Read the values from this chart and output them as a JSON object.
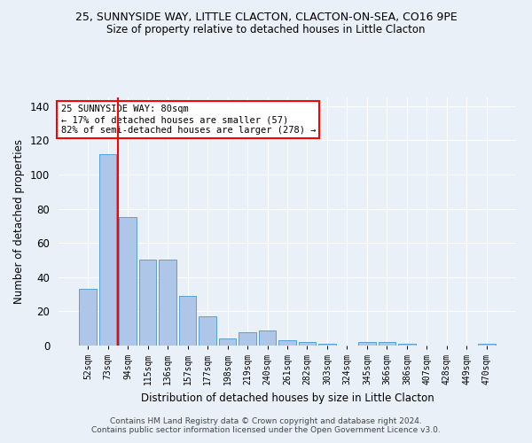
{
  "title1": "25, SUNNYSIDE WAY, LITTLE CLACTON, CLACTON-ON-SEA, CO16 9PE",
  "title2": "Size of property relative to detached houses in Little Clacton",
  "xlabel": "Distribution of detached houses by size in Little Clacton",
  "ylabel": "Number of detached properties",
  "categories": [
    "52sqm",
    "73sqm",
    "94sqm",
    "115sqm",
    "136sqm",
    "157sqm",
    "177sqm",
    "198sqm",
    "219sqm",
    "240sqm",
    "261sqm",
    "282sqm",
    "303sqm",
    "324sqm",
    "345sqm",
    "366sqm",
    "386sqm",
    "407sqm",
    "428sqm",
    "449sqm",
    "470sqm"
  ],
  "values": [
    33,
    112,
    75,
    50,
    50,
    29,
    17,
    4,
    8,
    9,
    3,
    2,
    1,
    0,
    2,
    2,
    1,
    0,
    0,
    0,
    1
  ],
  "bar_color": "#aec6e8",
  "bar_edge_color": "#5a9fd4",
  "vline_x": 1.5,
  "vline_color": "red",
  "annotation_text": "25 SUNNYSIDE WAY: 80sqm\n← 17% of detached houses are smaller (57)\n82% of semi-detached houses are larger (278) →",
  "annotation_box_color": "white",
  "annotation_box_edge": "red",
  "ylim": [
    0,
    145
  ],
  "footnote": "Contains HM Land Registry data © Crown copyright and database right 2024.\nContains public sector information licensed under the Open Government Licence v3.0.",
  "bg_color": "#eaf0f8",
  "grid_color": "#ffffff"
}
